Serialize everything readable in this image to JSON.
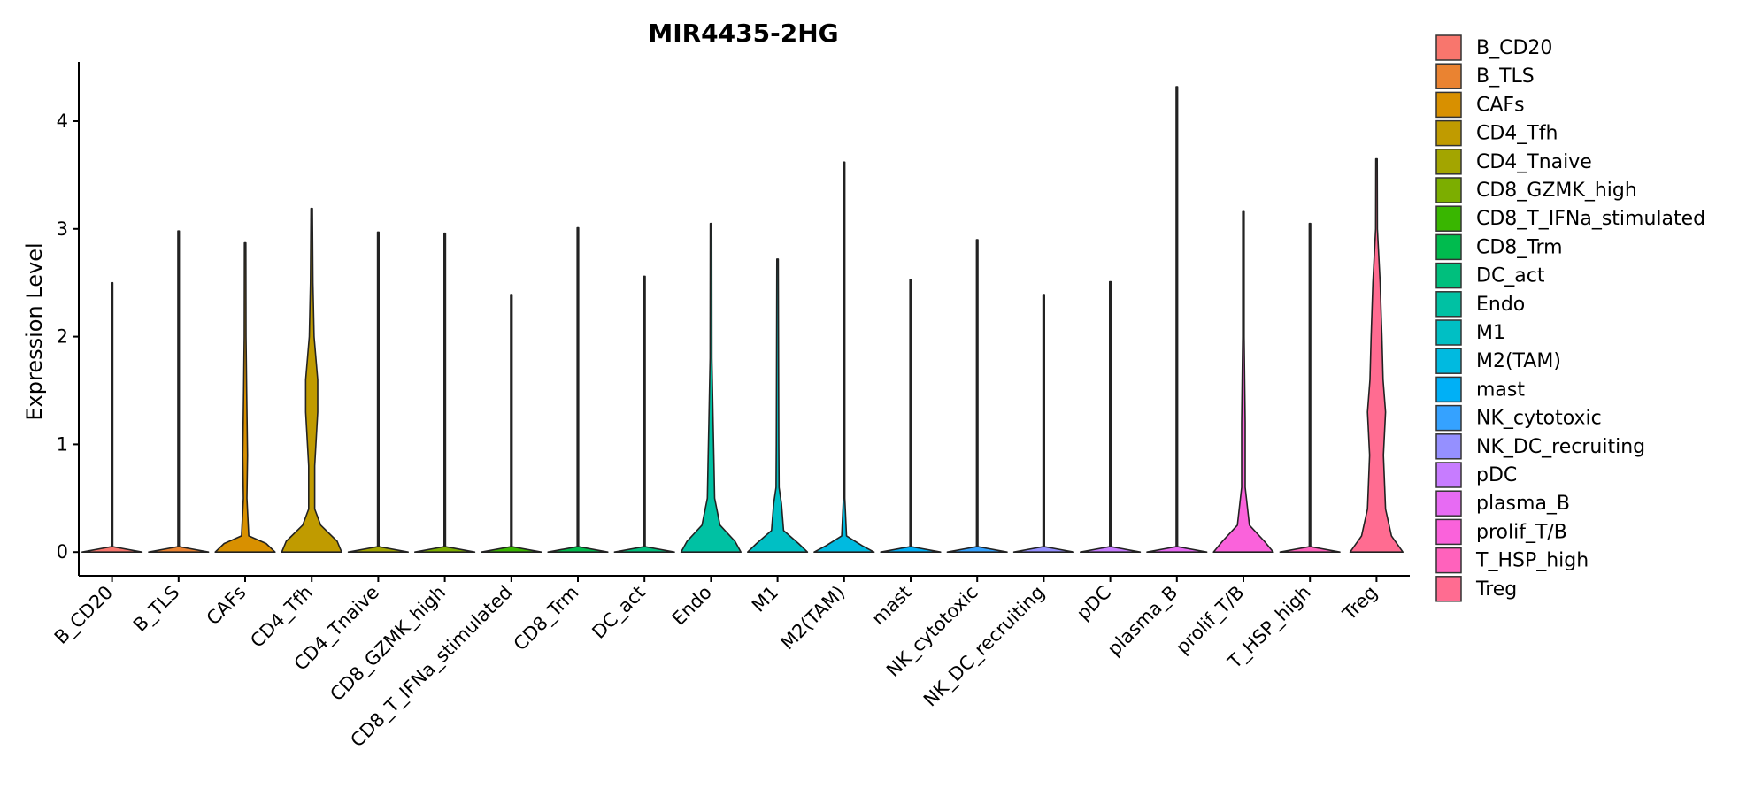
{
  "chart_data": {
    "type": "violin",
    "title": "MIR4435-2HG",
    "xlabel": "",
    "ylabel": "Expression Level",
    "ylim": [
      -0.22,
      4.55
    ],
    "yticks": [
      0,
      1,
      2,
      3,
      4
    ],
    "grid": false,
    "legend_position": "right",
    "categories": [
      "B_CD20",
      "B_TLS",
      "CAFs",
      "CD4_Tfh",
      "CD4_Tnaive",
      "CD8_GZMK_high",
      "CD8_T_IFNa_stimulated",
      "CD8_Trm",
      "DC_act",
      "Endo",
      "M1",
      "M2(TAM)",
      "mast",
      "NK_cytotoxic",
      "NK_DC_recruiting",
      "pDC",
      "plasma_B",
      "prolif_T/B",
      "T_HSP_high",
      "Treg"
    ],
    "colors": [
      "#F8766D",
      "#EA8331",
      "#D89000",
      "#C09B00",
      "#A3A500",
      "#7CAE00",
      "#39B600",
      "#00BB4E",
      "#00BF7D",
      "#00C1A3",
      "#00BFC4",
      "#00BAE0",
      "#00B0F6",
      "#35A2FF",
      "#9590FF",
      "#C77CFF",
      "#E76BF3",
      "#FA62DB",
      "#FF62BC",
      "#FF6C91"
    ],
    "max_values": [
      2.5,
      2.98,
      2.87,
      3.19,
      2.97,
      2.96,
      2.39,
      3.01,
      2.56,
      3.05,
      2.72,
      3.62,
      2.53,
      2.9,
      2.39,
      2.51,
      4.32,
      3.16,
      3.05,
      3.65
    ],
    "violin_profiles": [
      [
        [
          0,
          1.0
        ],
        [
          0.05,
          0.02
        ],
        [
          2.5,
          0.01
        ]
      ],
      [
        [
          0,
          1.0
        ],
        [
          0.05,
          0.02
        ],
        [
          2.98,
          0.01
        ]
      ],
      [
        [
          0,
          1.0
        ],
        [
          0.08,
          0.7
        ],
        [
          0.15,
          0.12
        ],
        [
          0.5,
          0.06
        ],
        [
          0.9,
          0.08
        ],
        [
          1.5,
          0.05
        ],
        [
          2.0,
          0.03
        ],
        [
          2.87,
          0.01
        ]
      ],
      [
        [
          0,
          1.0
        ],
        [
          0.1,
          0.85
        ],
        [
          0.25,
          0.3
        ],
        [
          0.4,
          0.1
        ],
        [
          0.8,
          0.1
        ],
        [
          1.3,
          0.2
        ],
        [
          1.6,
          0.2
        ],
        [
          2.0,
          0.08
        ],
        [
          2.5,
          0.04
        ],
        [
          3.19,
          0.01
        ]
      ],
      [
        [
          0,
          1.0
        ],
        [
          0.05,
          0.02
        ],
        [
          2.97,
          0.01
        ]
      ],
      [
        [
          0,
          1.0
        ],
        [
          0.05,
          0.02
        ],
        [
          2.96,
          0.01
        ]
      ],
      [
        [
          0,
          1.0
        ],
        [
          0.05,
          0.02
        ],
        [
          2.39,
          0.01
        ]
      ],
      [
        [
          0,
          1.0
        ],
        [
          0.05,
          0.02
        ],
        [
          3.01,
          0.01
        ]
      ],
      [
        [
          0,
          1.0
        ],
        [
          0.05,
          0.02
        ],
        [
          2.56,
          0.01
        ]
      ],
      [
        [
          0,
          1.0
        ],
        [
          0.1,
          0.8
        ],
        [
          0.25,
          0.3
        ],
        [
          0.5,
          0.12
        ],
        [
          0.8,
          0.1
        ],
        [
          1.2,
          0.07
        ],
        [
          1.8,
          0.03
        ],
        [
          3.05,
          0.01
        ]
      ],
      [
        [
          0,
          1.0
        ],
        [
          0.08,
          0.7
        ],
        [
          0.2,
          0.2
        ],
        [
          0.45,
          0.13
        ],
        [
          0.6,
          0.05
        ],
        [
          1.0,
          0.04
        ],
        [
          2.72,
          0.01
        ]
      ],
      [
        [
          0,
          1.0
        ],
        [
          0.06,
          0.6
        ],
        [
          0.15,
          0.08
        ],
        [
          0.5,
          0.02
        ],
        [
          3.62,
          0.01
        ]
      ],
      [
        [
          0,
          1.0
        ],
        [
          0.05,
          0.02
        ],
        [
          2.53,
          0.01
        ]
      ],
      [
        [
          0,
          1.0
        ],
        [
          0.05,
          0.02
        ],
        [
          2.9,
          0.01
        ]
      ],
      [
        [
          0,
          1.0
        ],
        [
          0.05,
          0.02
        ],
        [
          2.39,
          0.01
        ]
      ],
      [
        [
          0,
          1.0
        ],
        [
          0.05,
          0.02
        ],
        [
          2.51,
          0.01
        ]
      ],
      [
        [
          0,
          1.0
        ],
        [
          0.05,
          0.02
        ],
        [
          4.32,
          0.01
        ]
      ],
      [
        [
          0,
          1.0
        ],
        [
          0.1,
          0.7
        ],
        [
          0.25,
          0.2
        ],
        [
          0.6,
          0.06
        ],
        [
          1.2,
          0.06
        ],
        [
          2.0,
          0.02
        ],
        [
          3.16,
          0.01
        ]
      ],
      [
        [
          0,
          1.0
        ],
        [
          0.05,
          0.02
        ],
        [
          3.05,
          0.01
        ]
      ],
      [
        [
          0,
          0.88
        ],
        [
          0.15,
          0.5
        ],
        [
          0.4,
          0.3
        ],
        [
          0.9,
          0.23
        ],
        [
          1.3,
          0.3
        ],
        [
          1.6,
          0.22
        ],
        [
          2.0,
          0.18
        ],
        [
          2.5,
          0.12
        ],
        [
          3.0,
          0.03
        ],
        [
          3.65,
          0.01
        ]
      ]
    ]
  }
}
